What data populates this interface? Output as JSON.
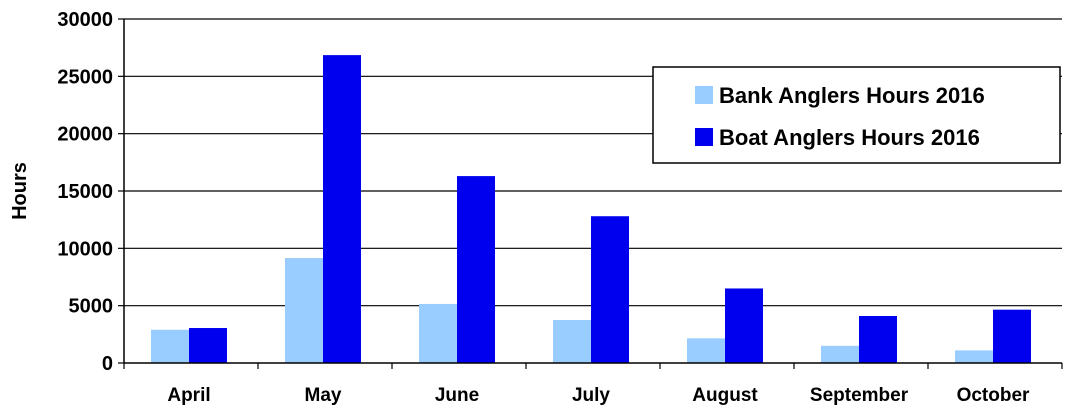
{
  "chart_data": {
    "type": "bar",
    "title": "",
    "xlabel": "",
    "ylabel": "Hours",
    "ylim": [
      0,
      30000
    ],
    "yticks": [
      0,
      5000,
      10000,
      15000,
      20000,
      25000,
      30000
    ],
    "ytick_labels": [
      "0",
      "5000",
      "10000",
      "15000",
      "20000",
      "25000",
      "30000"
    ],
    "grid": true,
    "legend_position": "top-right",
    "categories": [
      "April",
      "May",
      "June",
      "July",
      "August",
      "September",
      "October"
    ],
    "series": [
      {
        "name": "Bank Anglers Hours 2016",
        "color": "#99ccff",
        "values": [
          2900,
          9150,
          5150,
          3750,
          2150,
          1500,
          1100
        ]
      },
      {
        "name": "Boat Anglers Hours 2016",
        "color": "#0000ee",
        "values": [
          3050,
          26850,
          16300,
          12800,
          6500,
          4100,
          4650
        ]
      }
    ]
  }
}
